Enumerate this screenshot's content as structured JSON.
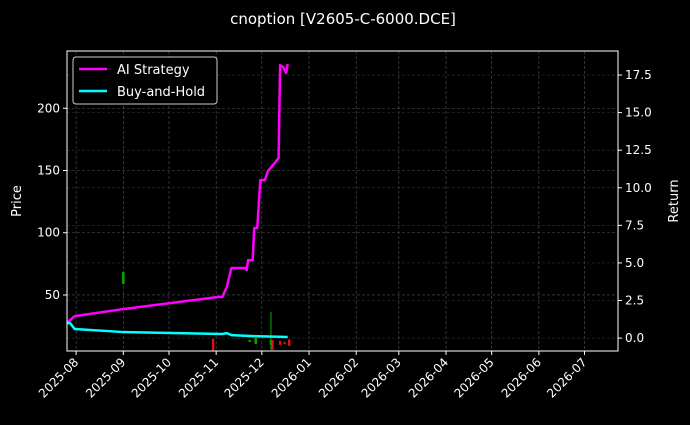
{
  "chart_data": {
    "type": "line",
    "title": "cnoption [V2605-C-6000.DCE]",
    "ylabel": "Price",
    "ylabel_right": "Return",
    "xlim": [
      "2025-07-26",
      "2026-07-23"
    ],
    "ylim": [
      5,
      246
    ],
    "ylim_right": [
      -0.86,
      19.1
    ],
    "grid": true,
    "legend_position": "top-left",
    "x_ticks": [
      "2025-08",
      "2025-09",
      "2025-10",
      "2025-11",
      "2025-12",
      "2026-01",
      "2026-02",
      "2026-03",
      "2026-04",
      "2026-05",
      "2026-06",
      "2026-07"
    ],
    "y_ticks": [
      50,
      100,
      150,
      200
    ],
    "y_ticks_right": [
      "0.0",
      "2.5",
      "5.0",
      "7.5",
      "10.0",
      "12.5",
      "15.0",
      "17.5"
    ],
    "series": [
      {
        "name": "AI Strategy",
        "axis": "right",
        "color": "#ff00ff",
        "x": [
          "2025-07-26",
          "2025-07-31",
          "2025-09-01",
          "2025-11-02",
          "2025-11-05",
          "2025-11-08",
          "2025-11-11",
          "2025-11-20",
          "2025-11-21",
          "2025-11-22",
          "2025-11-25",
          "2025-11-26",
          "2025-11-28",
          "2025-11-30",
          "2025-12-03",
          "2025-12-05",
          "2025-12-10",
          "2025-12-12",
          "2025-12-13",
          "2025-12-15",
          "2025-12-17",
          "2025-12-18"
        ],
        "y": [
          1.0,
          1.46,
          1.93,
          2.73,
          2.73,
          3.39,
          4.66,
          4.66,
          4.52,
          5.19,
          5.19,
          7.32,
          7.32,
          10.51,
          10.51,
          11.11,
          11.71,
          11.98,
          18.16,
          18.03,
          17.63,
          18.23
        ]
      },
      {
        "name": "Buy-and-Hold",
        "axis": "right",
        "color": "#00ffff",
        "x": [
          "2025-07-26",
          "2025-07-28",
          "2025-07-31",
          "2025-09-01",
          "2025-11-05",
          "2025-11-08",
          "2025-11-11",
          "2025-11-25",
          "2025-12-18"
        ],
        "y": [
          1.0,
          1.0,
          0.6,
          0.4,
          0.27,
          0.33,
          0.2,
          0.13,
          0.07
        ]
      }
    ],
    "candles": [
      {
        "date": "2025-09-01",
        "open": 58.8,
        "high": 68.5,
        "low": 58.8,
        "close": 68.5
      },
      {
        "date": "2025-10-30",
        "open": 14.7,
        "high": 14.7,
        "low": 5.5,
        "close": 5.5
      },
      {
        "date": "2025-11-23",
        "open": 12.3,
        "high": 13.9,
        "low": 12.3,
        "close": 13.9
      },
      {
        "date": "2025-11-27",
        "open": 10.7,
        "high": 15.4,
        "low": 10.7,
        "close": 15.4
      },
      {
        "date": "2025-12-07",
        "open": 9.9,
        "high": 36.4,
        "low": 5.9,
        "close": 13.9
      },
      {
        "date": "2025-12-08",
        "open": 13.9,
        "high": 13.9,
        "low": 5.9,
        "close": 5.9
      },
      {
        "date": "2025-12-13",
        "open": 13.1,
        "high": 13.1,
        "low": 9.9,
        "close": 9.9
      },
      {
        "date": "2025-12-16",
        "open": 12.3,
        "high": 12.3,
        "low": 10.7,
        "close": 10.7
      },
      {
        "date": "2025-12-19",
        "open": 13.9,
        "high": 14.7,
        "low": 9.1,
        "close": 9.1
      }
    ]
  }
}
